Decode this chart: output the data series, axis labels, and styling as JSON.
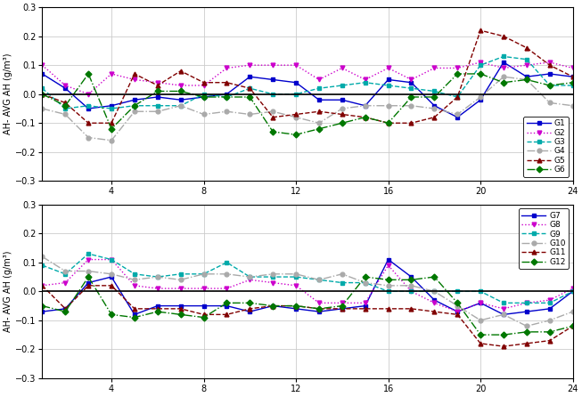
{
  "x": [
    1,
    2,
    3,
    4,
    5,
    6,
    7,
    8,
    9,
    10,
    11,
    12,
    13,
    14,
    15,
    16,
    17,
    18,
    19,
    20,
    21,
    22,
    23,
    24
  ],
  "G1": [
    0.07,
    0.02,
    -0.05,
    -0.04,
    -0.02,
    -0.01,
    -0.02,
    -0.01,
    0.0,
    0.06,
    0.05,
    0.04,
    -0.02,
    -0.02,
    -0.04,
    0.05,
    0.04,
    -0.04,
    -0.08,
    -0.02,
    0.11,
    0.06,
    0.07,
    0.06
  ],
  "G2": [
    0.1,
    0.03,
    0.0,
    0.07,
    0.05,
    0.04,
    0.03,
    0.03,
    0.09,
    0.1,
    0.1,
    0.1,
    0.05,
    0.09,
    0.05,
    0.09,
    0.05,
    0.09,
    0.09,
    0.11,
    0.09,
    0.1,
    0.11,
    0.09
  ],
  "G3": [
    0.02,
    -0.05,
    -0.04,
    -0.05,
    -0.04,
    -0.04,
    -0.04,
    0.0,
    -0.01,
    0.02,
    0.0,
    0.0,
    0.02,
    0.03,
    0.04,
    0.03,
    0.02,
    0.01,
    -0.01,
    0.1,
    0.13,
    0.12,
    0.03,
    0.03
  ],
  "G4": [
    -0.05,
    -0.07,
    -0.15,
    -0.16,
    -0.06,
    -0.06,
    -0.04,
    -0.07,
    -0.06,
    -0.07,
    -0.06,
    -0.08,
    -0.1,
    -0.05,
    -0.04,
    -0.04,
    -0.04,
    -0.05,
    -0.07,
    -0.01,
    0.06,
    0.05,
    -0.03,
    -0.04
  ],
  "G5": [
    0.0,
    -0.03,
    -0.1,
    -0.1,
    0.07,
    0.03,
    0.08,
    0.04,
    0.04,
    0.02,
    -0.08,
    -0.07,
    -0.06,
    -0.07,
    -0.08,
    -0.1,
    -0.1,
    -0.08,
    -0.01,
    0.22,
    0.2,
    0.16,
    0.1,
    0.06
  ],
  "G6": [
    0.0,
    -0.04,
    0.07,
    -0.12,
    -0.04,
    0.01,
    0.01,
    -0.01,
    -0.01,
    -0.01,
    -0.13,
    -0.14,
    -0.12,
    -0.1,
    -0.08,
    -0.1,
    -0.01,
    -0.01,
    0.07,
    0.07,
    0.04,
    0.05,
    0.03,
    0.04
  ],
  "G7": [
    -0.07,
    -0.06,
    0.03,
    0.05,
    -0.08,
    -0.05,
    -0.05,
    -0.05,
    -0.05,
    -0.07,
    -0.05,
    -0.06,
    -0.07,
    -0.06,
    -0.05,
    0.11,
    0.05,
    -0.03,
    -0.07,
    -0.04,
    -0.08,
    -0.07,
    -0.06,
    0.0
  ],
  "G8": [
    0.02,
    0.03,
    0.11,
    0.11,
    0.02,
    0.01,
    0.01,
    0.01,
    0.01,
    0.04,
    0.03,
    0.02,
    -0.04,
    -0.04,
    -0.04,
    0.09,
    0.0,
    -0.04,
    -0.07,
    -0.04,
    -0.06,
    -0.04,
    -0.03,
    0.01
  ],
  "G9": [
    0.09,
    0.06,
    0.13,
    0.11,
    0.06,
    0.05,
    0.06,
    0.06,
    0.1,
    0.05,
    0.05,
    0.05,
    0.04,
    0.03,
    0.03,
    0.0,
    0.0,
    0.0,
    0.0,
    0.0,
    -0.04,
    -0.04,
    -0.04,
    0.0
  ],
  "G10": [
    0.12,
    0.07,
    0.07,
    0.06,
    0.04,
    0.05,
    0.04,
    0.06,
    0.06,
    0.05,
    0.06,
    0.06,
    0.04,
    0.06,
    0.03,
    0.02,
    0.02,
    0.0,
    -0.05,
    -0.1,
    -0.08,
    -0.12,
    -0.1,
    -0.07
  ],
  "G11": [
    0.02,
    -0.06,
    0.02,
    0.02,
    -0.06,
    -0.06,
    -0.06,
    -0.08,
    -0.08,
    -0.06,
    -0.05,
    -0.05,
    -0.06,
    -0.06,
    -0.06,
    -0.06,
    -0.06,
    -0.07,
    -0.08,
    -0.18,
    -0.19,
    -0.18,
    -0.17,
    -0.12
  ],
  "G12": [
    -0.05,
    -0.07,
    0.05,
    -0.08,
    -0.09,
    -0.07,
    -0.08,
    -0.09,
    -0.04,
    -0.04,
    -0.05,
    -0.05,
    -0.06,
    -0.05,
    0.05,
    0.04,
    0.04,
    0.05,
    -0.04,
    -0.15,
    -0.15,
    -0.14,
    -0.14,
    -0.12
  ],
  "colors": {
    "G1": "#0000cc",
    "G2": "#cc00cc",
    "G3": "#00aaaa",
    "G4": "#aaaaaa",
    "G5": "#800000",
    "G6": "#007700",
    "G7": "#0000cc",
    "G8": "#cc00cc",
    "G9": "#00aaaa",
    "G10": "#aaaaaa",
    "G11": "#800000",
    "G12": "#007700"
  },
  "ylim": [
    -0.3,
    0.3
  ],
  "xlim": [
    1,
    24
  ],
  "ylabel": "AH- AVG AH (g/m³)",
  "xticks": [
    4,
    8,
    12,
    16,
    20,
    24
  ],
  "yticks": [
    -0.3,
    -0.2,
    -0.1,
    0.0,
    0.1,
    0.2,
    0.3
  ]
}
